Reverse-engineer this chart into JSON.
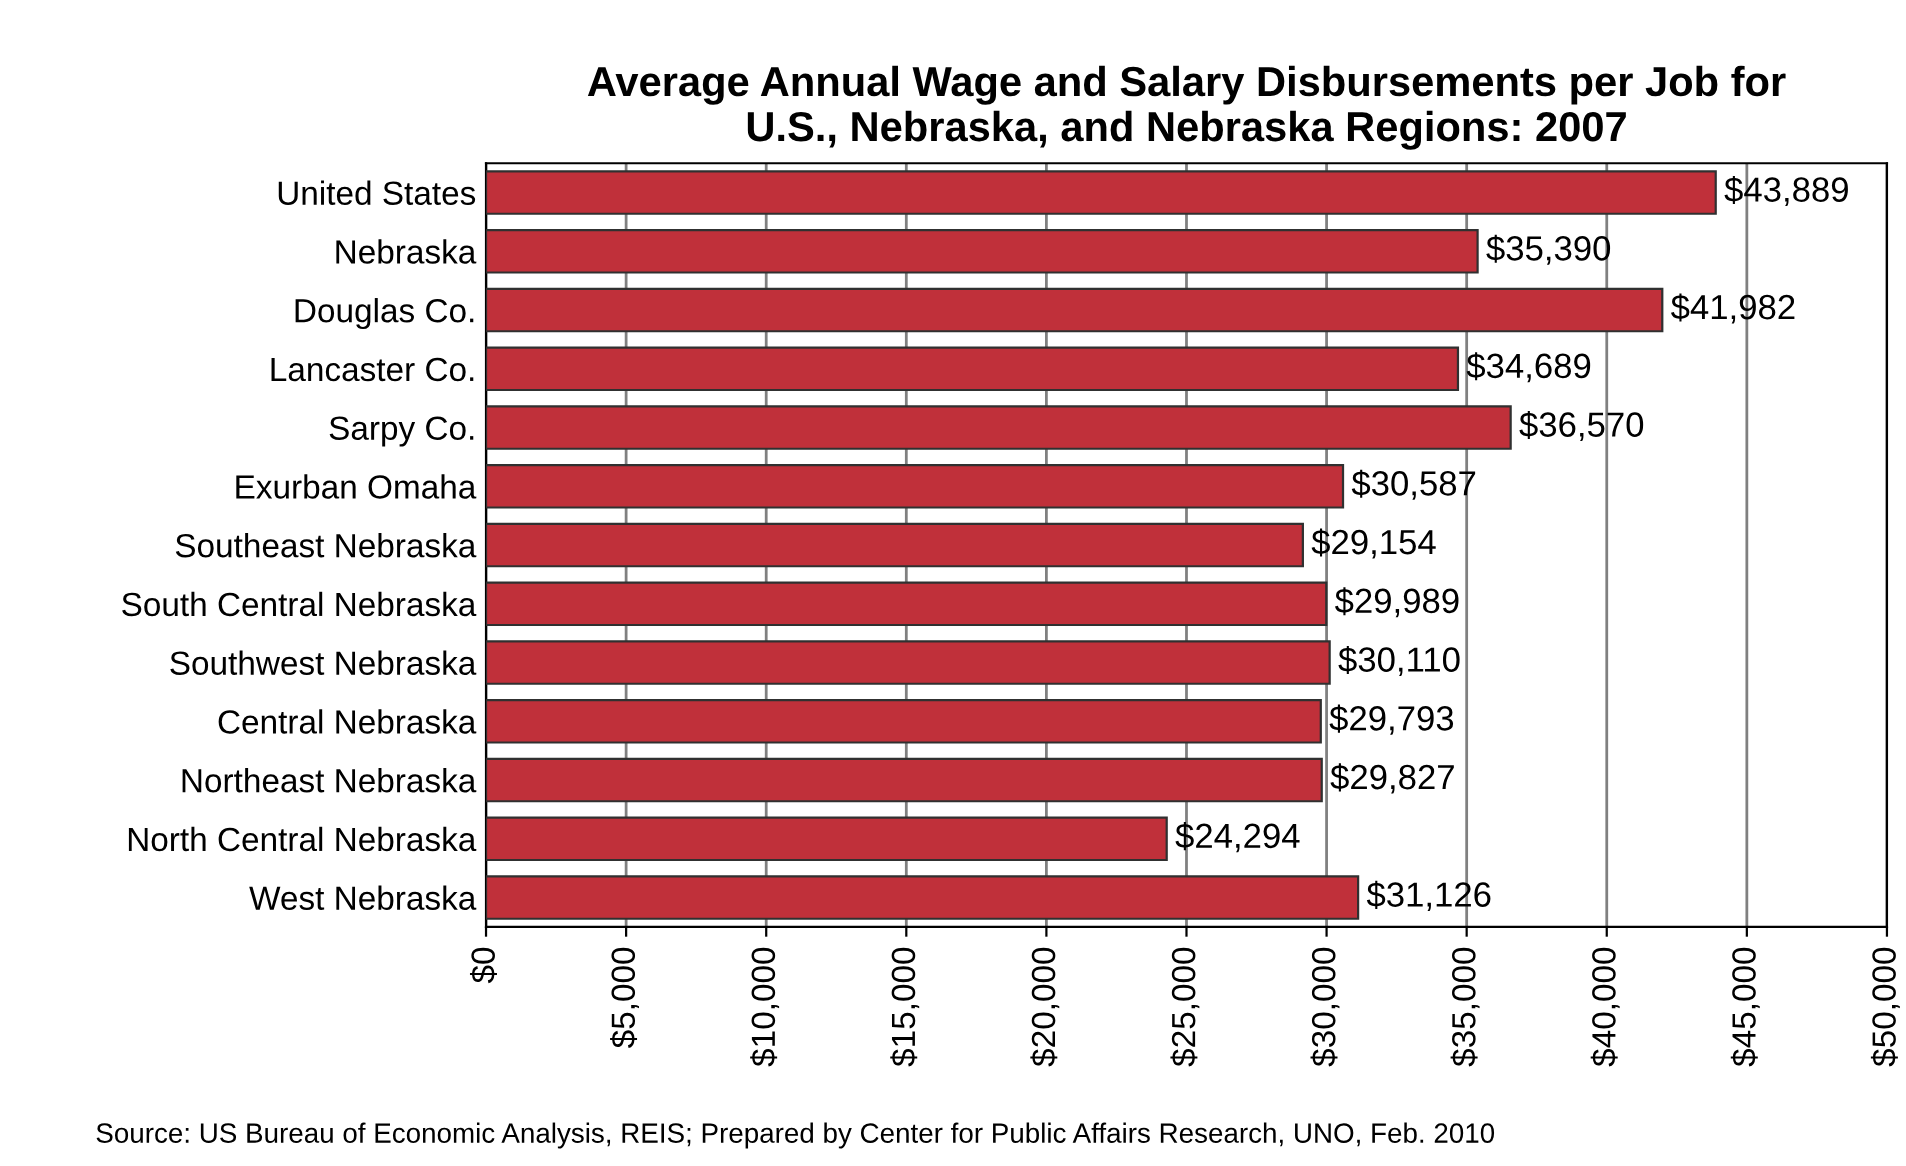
{
  "chart_data": {
    "type": "bar",
    "orientation": "horizontal",
    "title": "Average Annual Wage and Salary Disbursements per Job for\nU.S., Nebraska, and Nebraska Regions: 2007",
    "categories": [
      "United States",
      "Nebraska",
      "Douglas Co.",
      "Lancaster Co.",
      "Sarpy Co.",
      "Exurban Omaha",
      "Southeast Nebraska",
      "South Central Nebraska",
      "Southwest Nebraska",
      "Central Nebraska",
      "Northeast Nebraska",
      "North Central Nebraska",
      "West Nebraska"
    ],
    "values": [
      43889,
      35390,
      41982,
      34689,
      36570,
      30587,
      29154,
      29989,
      30110,
      29793,
      29827,
      24294,
      31126
    ],
    "value_labels": [
      "$43,889",
      "$35,390",
      "$41,982",
      "$34,689",
      "$36,570",
      "$30,587",
      "$29,154",
      "$29,989",
      "$30,110",
      "$29,793",
      "$29,827",
      "$24,294",
      "$31,126"
    ],
    "color": "#c0303a",
    "xlim": [
      0,
      50000
    ],
    "xticks": [
      {
        "value": 0,
        "label": "$0"
      },
      {
        "value": 5000,
        "label": "$5,000"
      },
      {
        "value": 10000,
        "label": "$10,000"
      },
      {
        "value": 15000,
        "label": "$15,000"
      },
      {
        "value": 20000,
        "label": "$20,000"
      },
      {
        "value": 25000,
        "label": "$25,000"
      },
      {
        "value": 30000,
        "label": "$30,000"
      },
      {
        "value": 35000,
        "label": "$35,000"
      },
      {
        "value": 40000,
        "label": "$40,000"
      },
      {
        "value": 45000,
        "label": "$45,000"
      },
      {
        "value": 50000,
        "label": "$50,000"
      }
    ],
    "grid": "x",
    "annotations": [
      "Source: US Bureau of Economic Analysis, REIS; Prepared by Center for Public Affairs Research, UNO, Feb. 2010"
    ]
  }
}
